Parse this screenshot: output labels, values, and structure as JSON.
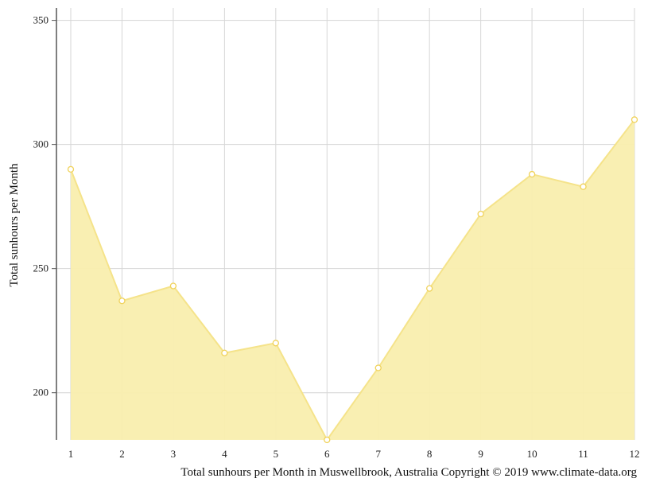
{
  "chart_data": {
    "type": "area",
    "x": [
      1,
      2,
      3,
      4,
      5,
      6,
      7,
      8,
      9,
      10,
      11,
      12
    ],
    "series": [
      {
        "values": [
          290,
          237,
          243,
          216,
          220,
          181,
          210,
          242,
          272,
          288,
          283,
          310
        ]
      }
    ],
    "ylabel": "Total sunhours per Month",
    "xlabel": "",
    "ylim": [
      181,
      355
    ],
    "yticks": [
      200,
      250,
      300,
      350
    ],
    "xticks": [
      1,
      2,
      3,
      4,
      5,
      6,
      7,
      8,
      9,
      10,
      11,
      12
    ],
    "grid": true,
    "colors": {
      "fill": "#f9eeae",
      "line": "#f5e38a",
      "marker_stroke": "#f0d25a",
      "grid": "#d6d6d6",
      "axis": "#555555"
    }
  },
  "caption": "Total sunhours per Month in Muswellbrook, Australia Copyright © 2019 www.climate-data.org"
}
